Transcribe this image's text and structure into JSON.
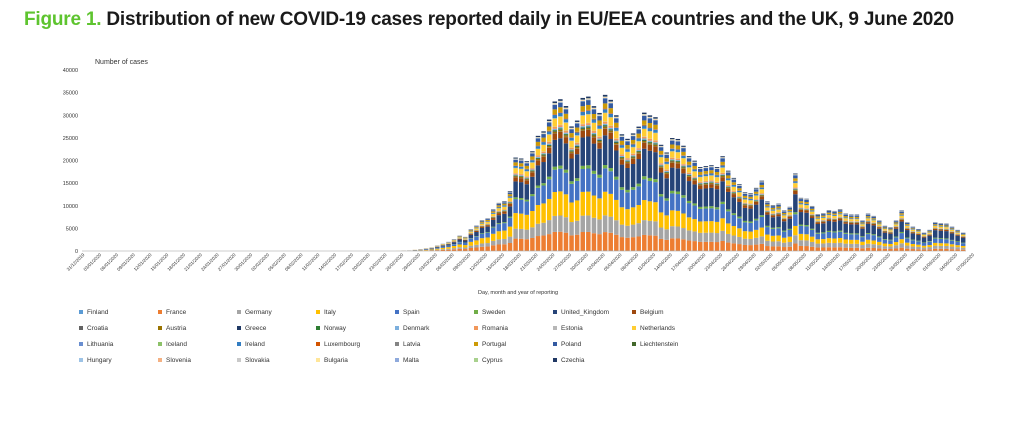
{
  "figure": {
    "number_label": "Figure 1.",
    "title": "Distribution of new COVID-19 cases reported daily in EU/EEA countries and the UK, 9 June 2020"
  },
  "chart_data": {
    "type": "bar",
    "stacked": true,
    "ylabel": "Number of cases",
    "xlabel": "Day, month and year of reporting",
    "ylim": [
      0,
      40000
    ],
    "yticks": [
      0,
      5000,
      10000,
      15000,
      20000,
      25000,
      30000,
      35000,
      40000
    ],
    "grid": false,
    "legend_position": "bottom",
    "date_start": "2019-12-31",
    "date_end": "2020-06-09",
    "x_tick_labels": [
      "31/12/2019",
      "03/01/2020",
      "06/01/2020",
      "09/01/2020",
      "12/01/2020",
      "15/01/2020",
      "18/01/2020",
      "21/01/2020",
      "24/01/2020",
      "27/01/2020",
      "30/01/2020",
      "02/02/2020",
      "05/02/2020",
      "08/02/2020",
      "11/02/2020",
      "14/02/2020",
      "17/02/2020",
      "20/02/2020",
      "23/02/2020",
      "26/02/2020",
      "29/02/2020",
      "03/03/2020",
      "06/03/2020",
      "09/03/2020",
      "12/03/2020",
      "15/03/2020",
      "18/03/2020",
      "21/03/2020",
      "24/03/2020",
      "27/03/2020",
      "30/03/2020",
      "02/04/2020",
      "05/04/2020",
      "08/04/2020",
      "11/04/2020",
      "14/04/2020",
      "17/04/2020",
      "20/04/2020",
      "23/04/2020",
      "26/04/2020",
      "29/04/2020",
      "02/05/2020",
      "05/05/2020",
      "08/05/2020",
      "11/05/2020",
      "14/05/2020",
      "17/05/2020",
      "20/05/2020",
      "23/05/2020",
      "26/05/2020",
      "29/05/2020",
      "01/06/2020",
      "04/06/2020",
      "07/06/2020"
    ],
    "daily_totals": [
      0,
      0,
      0,
      0,
      0,
      0,
      0,
      0,
      0,
      0,
      0,
      0,
      0,
      0,
      0,
      0,
      0,
      0,
      0,
      0,
      0,
      0,
      0,
      0,
      0,
      0,
      0,
      0,
      0,
      0,
      0,
      0,
      0,
      0,
      0,
      0,
      0,
      0,
      0,
      0,
      0,
      0,
      0,
      0,
      0,
      0,
      0,
      0,
      0,
      0,
      0,
      0,
      0,
      0,
      0,
      20,
      60,
      80,
      150,
      300,
      400,
      600,
      800,
      1200,
      1600,
      2000,
      2600,
      3400,
      3100,
      4800,
      5600,
      6800,
      7200,
      9200,
      10600,
      11000,
      13200,
      20600,
      20400,
      19800,
      22000,
      25400,
      26400,
      29000,
      33000,
      33500,
      32000,
      27500,
      28800,
      33800,
      34100,
      32000,
      30500,
      34500,
      33400,
      30000,
      25800,
      24800,
      26000,
      27500,
      30600,
      30000,
      29600,
      23500,
      21800,
      25000,
      24800,
      23300,
      21000,
      20000,
      18600,
      18800,
      19000,
      18600,
      21000,
      17800,
      16200,
      14800,
      13000,
      12800,
      14000,
      15600,
      11000,
      10200,
      10500,
      9000,
      9800,
      17200,
      11800,
      11600,
      10000,
      8200,
      8400,
      9100,
      8900,
      9300,
      8300,
      8100,
      8100,
      6800,
      8300,
      7800,
      6800,
      5600,
      5300,
      6800,
      9000,
      6400,
      5400,
      4900,
      4100,
      4700,
      6400,
      6200,
      6100,
      5400,
      4700,
      4100
    ],
    "series": [
      {
        "name": "Finland",
        "color": "#5b9bd5",
        "weight": 0.002
      },
      {
        "name": "France",
        "color": "#ed7d31",
        "weight": 0.11
      },
      {
        "name": "Germany",
        "color": "#a5a5a5",
        "weight": 0.1
      },
      {
        "name": "Italy",
        "color": "#ffc000",
        "weight": 0.14
      },
      {
        "name": "Spain",
        "color": "#4472c4",
        "weight": 0.14
      },
      {
        "name": "Sweden",
        "color": "#70ad47",
        "weight": 0.02
      },
      {
        "name": "United_Kingdom",
        "color": "#264478",
        "weight": 0.18
      },
      {
        "name": "Belgium",
        "color": "#9e480e",
        "weight": 0.04
      },
      {
        "name": "Croatia",
        "color": "#636363",
        "weight": 0.002
      },
      {
        "name": "Austria",
        "color": "#997300",
        "weight": 0.01
      },
      {
        "name": "Greece",
        "color": "#1f3864",
        "weight": 0.003
      },
      {
        "name": "Norway",
        "color": "#2e7d32",
        "weight": 0.006
      },
      {
        "name": "Denmark",
        "color": "#7cafdd",
        "weight": 0.008
      },
      {
        "name": "Romania",
        "color": "#f1975a",
        "weight": 0.012
      },
      {
        "name": "Estonia",
        "color": "#b7b7b7",
        "weight": 0.002
      },
      {
        "name": "Netherlands",
        "color": "#ffcd33",
        "weight": 0.05
      },
      {
        "name": "Lithuania",
        "color": "#698ed0",
        "weight": 0.002
      },
      {
        "name": "Iceland",
        "color": "#8cc168",
        "weight": 0.001
      },
      {
        "name": "Ireland",
        "color": "#327dc2",
        "weight": 0.02
      },
      {
        "name": "Luxembourg",
        "color": "#d35400",
        "weight": 0.004
      },
      {
        "name": "Latvia",
        "color": "#848484",
        "weight": 0.001
      },
      {
        "name": "Portugal",
        "color": "#cc9a06",
        "weight": 0.03
      },
      {
        "name": "Poland",
        "color": "#335aa1",
        "weight": 0.03
      },
      {
        "name": "Liechtenstein",
        "color": "#43682b",
        "weight": 0.0005
      },
      {
        "name": "Hungary",
        "color": "#9dc3e6",
        "weight": 0.003
      },
      {
        "name": "Slovenia",
        "color": "#f4b183",
        "weight": 0.002
      },
      {
        "name": "Slovakia",
        "color": "#c9c9c9",
        "weight": 0.001
      },
      {
        "name": "Bulgaria",
        "color": "#ffe699",
        "weight": 0.003
      },
      {
        "name": "Malta",
        "color": "#8faadc",
        "weight": 0.001
      },
      {
        "name": "Cyprus",
        "color": "#a9d18e",
        "weight": 0.001
      },
      {
        "name": "Czechia",
        "color": "#203864",
        "weight": 0.01
      }
    ]
  }
}
